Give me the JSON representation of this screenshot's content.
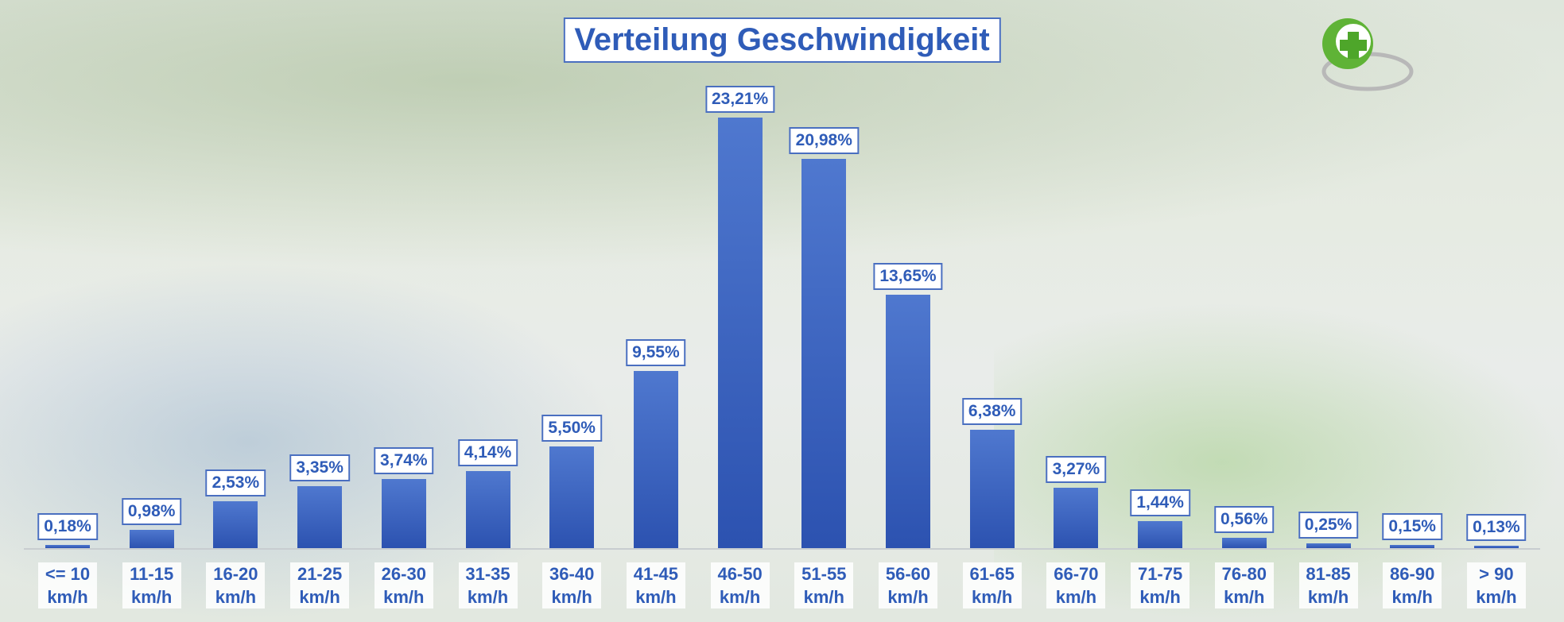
{
  "chart_data": {
    "type": "bar",
    "title": "Verteilung Geschwindigkeit",
    "categories": [
      "<= 10 km/h",
      "11-15 km/h",
      "16-20 km/h",
      "21-25 km/h",
      "26-30 km/h",
      "31-35 km/h",
      "36-40 km/h",
      "41-45 km/h",
      "46-50 km/h",
      "51-55 km/h",
      "56-60 km/h",
      "61-65 km/h",
      "66-70 km/h",
      "71-75 km/h",
      "76-80 km/h",
      "81-85 km/h",
      "86-90 km/h",
      "> 90 km/h"
    ],
    "values": [
      0.18,
      0.98,
      2.53,
      3.35,
      3.74,
      4.14,
      5.5,
      9.55,
      23.21,
      20.98,
      13.65,
      6.38,
      3.27,
      1.44,
      0.56,
      0.25,
      0.15,
      0.13
    ],
    "value_labels": [
      "0,18%",
      "0,98%",
      "2,53%",
      "3,35%",
      "3,74%",
      "4,14%",
      "5,50%",
      "9,55%",
      "23,21%",
      "20,98%",
      "13,65%",
      "6,38%",
      "3,27%",
      "1,44%",
      "0,56%",
      "0,25%",
      "0,15%",
      "0,13%"
    ],
    "color": "#3a62c0"
  }
}
